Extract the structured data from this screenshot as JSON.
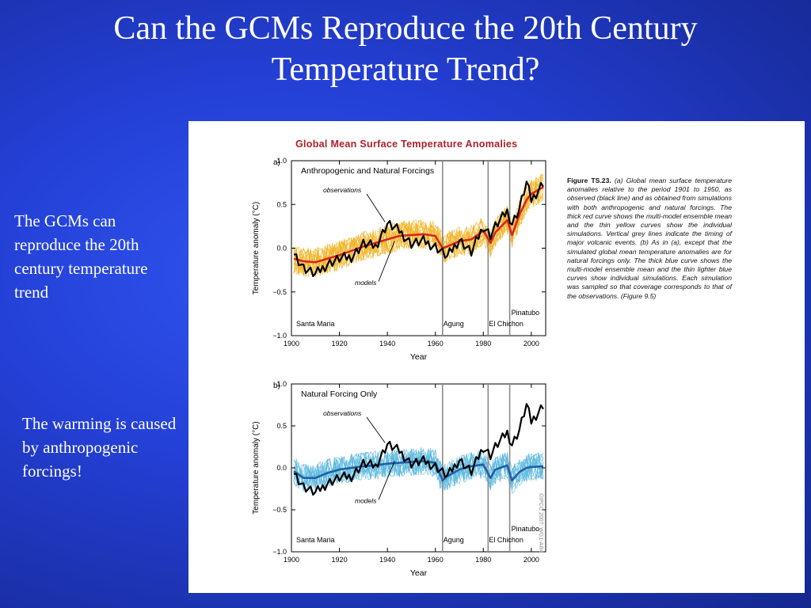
{
  "slide": {
    "title_line1": "Can the GCMs Reproduce the 20th Century",
    "title_line2": "Temperature Trend?",
    "bullet1": "The GCMs can reproduce the 20th century temperature trend",
    "bullet2": "The warming is caused by anthropogenic forcings!"
  },
  "figure": {
    "title": "Global Mean Surface Temperature Anomalies",
    "caption_label": "Figure TS.23.",
    "caption_text": "(a) Global mean surface temperature anomalies relative to the period 1901 to 1950, as observed (black line) and as obtained from simulations with both anthropogenic and natural forcings. The thick red curve shows the multi-model ensemble mean and the thin yellow curves show the individual simulations. Vertical grey lines indicate the timing of major volcanic events. (b) As in (a), except that the simulated global mean temperature anomalies are for natural forcings only. The thick blue curve shows the multi-model ensemble mean and the thin lighter blue curves show individual simulations. Each simulation was sampled so that coverage corresponds to that of the observations. (Figure 9.5)",
    "copyright": "©IPCC 2007: WG1-AR4"
  },
  "chart_data": [
    {
      "type": "line",
      "panel_label": "a)",
      "title": "Anthropogenic and Natural Forcings",
      "xlabel": "Year",
      "ylabel": "Temperature anomaly (°C)",
      "xlim": [
        1900,
        2006
      ],
      "ylim": [
        -1.0,
        1.0
      ],
      "x_ticks": [
        1900,
        1920,
        1940,
        1960,
        1980,
        2000
      ],
      "y_ticks": [
        "-1.0",
        "-0.5",
        "0.0",
        "0.5",
        "1.0"
      ],
      "annotations": [
        "observations",
        "models"
      ],
      "volcanoes": [
        {
          "name": "Santa Maria",
          "year": 1902
        },
        {
          "name": "Agung",
          "year": 1963
        },
        {
          "name": "El Chichon",
          "year": 1982
        },
        {
          "name": "Pinatubo",
          "year": 1991
        }
      ],
      "colors": {
        "observations": "#000000",
        "mean": "#d7261e",
        "ensemble": "#f0b323"
      },
      "series": [
        {
          "role": "observations",
          "x": [
            1901,
            1905,
            1910,
            1915,
            1920,
            1925,
            1930,
            1935,
            1940,
            1945,
            1950,
            1955,
            1960,
            1963,
            1965,
            1970,
            1975,
            1980,
            1983,
            1985,
            1990,
            1992,
            1995,
            1998,
            2000,
            2005
          ],
          "values": [
            -0.05,
            -0.22,
            -0.3,
            -0.18,
            -0.12,
            -0.1,
            0.05,
            0.02,
            0.28,
            0.2,
            0.05,
            0.08,
            0.02,
            -0.05,
            -0.1,
            0.1,
            -0.05,
            0.25,
            0.15,
            0.25,
            0.42,
            0.28,
            0.45,
            0.75,
            0.55,
            0.75
          ]
        },
        {
          "role": "mean",
          "x": [
            1901,
            1905,
            1910,
            1915,
            1920,
            1925,
            1930,
            1935,
            1940,
            1945,
            1950,
            1955,
            1960,
            1963,
            1965,
            1970,
            1975,
            1980,
            1983,
            1985,
            1990,
            1992,
            1995,
            1998,
            2000,
            2005
          ],
          "values": [
            -0.12,
            -0.15,
            -0.16,
            -0.12,
            -0.08,
            -0.03,
            0.02,
            0.06,
            0.1,
            0.14,
            0.15,
            0.16,
            0.14,
            0.0,
            0.02,
            0.08,
            0.1,
            0.2,
            0.06,
            0.18,
            0.32,
            0.15,
            0.38,
            0.55,
            0.62,
            0.7
          ]
        }
      ]
    },
    {
      "type": "line",
      "panel_label": "b)",
      "title": "Natural Forcing Only",
      "xlabel": "Year",
      "ylabel": "Temperature anomaly (°C)",
      "xlim": [
        1900,
        2006
      ],
      "ylim": [
        -1.0,
        1.0
      ],
      "x_ticks": [
        1900,
        1920,
        1940,
        1960,
        1980,
        2000
      ],
      "y_ticks": [
        "-1.0",
        "-0.5",
        "0.0",
        "0.5",
        "1.0"
      ],
      "annotations": [
        "observations",
        "models"
      ],
      "volcanoes": [
        {
          "name": "Santa Maria",
          "year": 1902
        },
        {
          "name": "Agung",
          "year": 1963
        },
        {
          "name": "El Chichon",
          "year": 1982
        },
        {
          "name": "Pinatubo",
          "year": 1991
        }
      ],
      "colors": {
        "observations": "#000000",
        "mean": "#1f5fa8",
        "ensemble": "#5bb8dd"
      },
      "series": [
        {
          "role": "observations",
          "x": [
            1901,
            1905,
            1910,
            1915,
            1920,
            1925,
            1930,
            1935,
            1940,
            1945,
            1950,
            1955,
            1960,
            1963,
            1965,
            1970,
            1975,
            1980,
            1983,
            1985,
            1990,
            1992,
            1995,
            1998,
            2000,
            2005
          ],
          "values": [
            -0.05,
            -0.22,
            -0.3,
            -0.18,
            -0.12,
            -0.1,
            0.05,
            0.02,
            0.28,
            0.2,
            0.05,
            0.08,
            0.02,
            -0.05,
            -0.1,
            0.1,
            -0.05,
            0.25,
            0.15,
            0.25,
            0.42,
            0.28,
            0.45,
            0.75,
            0.55,
            0.75
          ]
        },
        {
          "role": "mean",
          "x": [
            1901,
            1905,
            1910,
            1915,
            1920,
            1925,
            1930,
            1935,
            1940,
            1945,
            1950,
            1955,
            1960,
            1963,
            1965,
            1970,
            1975,
            1980,
            1983,
            1985,
            1990,
            1992,
            1995,
            1998,
            2000,
            2005
          ],
          "values": [
            -0.04,
            -0.12,
            -0.12,
            -0.06,
            -0.02,
            0.0,
            0.02,
            0.03,
            0.05,
            0.06,
            0.07,
            0.08,
            0.06,
            -0.15,
            -0.1,
            -0.02,
            0.02,
            0.04,
            -0.12,
            -0.02,
            0.03,
            -0.15,
            -0.05,
            0.0,
            0.01,
            0.02
          ]
        }
      ]
    }
  ]
}
